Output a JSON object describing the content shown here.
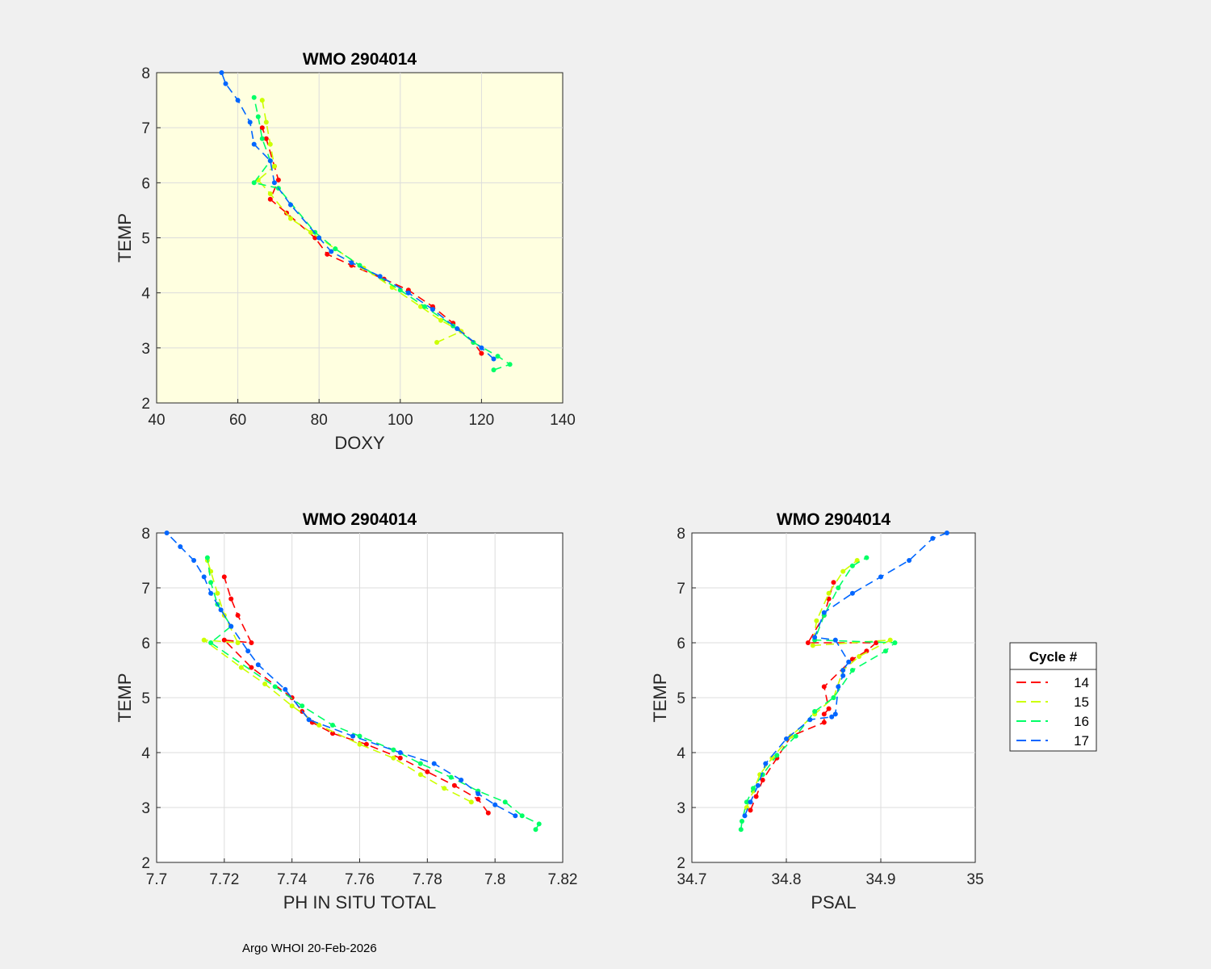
{
  "footer": "Argo WHOI 20-Feb-2026",
  "colors": {
    "figure_bg": "#f0f0f0",
    "highlight_bg": "#ffffe0",
    "plain_bg": "#ffffff"
  },
  "legend": {
    "title": "Cycle #",
    "entries": [
      {
        "label": "14",
        "color": "#ff0000"
      },
      {
        "label": "15",
        "color": "#ccff00"
      },
      {
        "label": "16",
        "color": "#00ff66"
      },
      {
        "label": "17",
        "color": "#0066ff"
      }
    ]
  },
  "chart_data": [
    {
      "type": "line",
      "title": "WMO 2904014",
      "xlabel": "DOXY",
      "ylabel": "TEMP",
      "xlim": [
        40,
        140
      ],
      "ylim": [
        2,
        8
      ],
      "xticks": [
        40,
        60,
        80,
        100,
        120,
        140
      ],
      "yticks": [
        2,
        3,
        4,
        5,
        6,
        7,
        8
      ],
      "xtick_labels": [
        "40",
        "60",
        "80",
        "100",
        "120",
        "140"
      ],
      "ytick_labels": [
        "2",
        "3",
        "4",
        "5",
        "6",
        "7",
        "8"
      ],
      "background": "#ffffe0",
      "series": [
        {
          "name": "14",
          "color": "#ff0000",
          "points": [
            [
              120,
              2.9
            ],
            [
              118,
              3.1
            ],
            [
              113,
              3.45
            ],
            [
              108,
              3.75
            ],
            [
              102,
              4.05
            ],
            [
              96,
              4.25
            ],
            [
              88,
              4.5
            ],
            [
              82,
              4.7
            ],
            [
              79,
              5.0
            ],
            [
              72,
              5.45
            ],
            [
              68,
              5.7
            ],
            [
              70,
              6.05
            ],
            [
              69,
              6.3
            ],
            [
              67,
              6.8
            ],
            [
              66,
              7.0
            ]
          ]
        },
        {
          "name": "15",
          "color": "#ccff00",
          "points": [
            [
              109,
              3.1
            ],
            [
              115,
              3.3
            ],
            [
              110,
              3.5
            ],
            [
              105,
              3.75
            ],
            [
              98,
              4.1
            ],
            [
              91,
              4.45
            ],
            [
              84,
              4.8
            ],
            [
              78,
              5.1
            ],
            [
              73,
              5.35
            ],
            [
              68,
              5.8
            ],
            [
              65,
              6.05
            ],
            [
              69,
              6.3
            ],
            [
              68,
              6.7
            ],
            [
              67,
              7.1
            ],
            [
              66,
              7.5
            ]
          ]
        },
        {
          "name": "16",
          "color": "#00ff66",
          "points": [
            [
              123,
              2.6
            ],
            [
              127,
              2.7
            ],
            [
              124,
              2.85
            ],
            [
              118,
              3.1
            ],
            [
              113,
              3.4
            ],
            [
              106,
              3.75
            ],
            [
              100,
              4.05
            ],
            [
              90,
              4.5
            ],
            [
              84,
              4.8
            ],
            [
              79,
              5.1
            ],
            [
              70,
              5.9
            ],
            [
              64,
              6.0
            ],
            [
              68,
              6.4
            ],
            [
              66,
              6.8
            ],
            [
              65,
              7.2
            ],
            [
              64,
              7.55
            ]
          ]
        },
        {
          "name": "17",
          "color": "#0066ff",
          "points": [
            [
              123,
              2.8
            ],
            [
              120,
              3.0
            ],
            [
              114,
              3.35
            ],
            [
              108,
              3.7
            ],
            [
              102,
              4.0
            ],
            [
              95,
              4.3
            ],
            [
              88,
              4.55
            ],
            [
              83,
              4.75
            ],
            [
              80,
              5.0
            ],
            [
              73,
              5.6
            ],
            [
              69,
              6.0
            ],
            [
              68,
              6.4
            ],
            [
              64,
              6.7
            ],
            [
              63,
              7.1
            ],
            [
              60,
              7.5
            ],
            [
              57,
              7.8
            ],
            [
              56,
              8.0
            ]
          ]
        }
      ]
    },
    {
      "type": "line",
      "title": "WMO 2904014",
      "xlabel": "PH IN SITU TOTAL",
      "ylabel": "TEMP",
      "xlim": [
        7.7,
        7.82
      ],
      "ylim": [
        2,
        8
      ],
      "xticks": [
        7.7,
        7.72,
        7.74,
        7.76,
        7.78,
        7.8,
        7.82
      ],
      "yticks": [
        2,
        3,
        4,
        5,
        6,
        7,
        8
      ],
      "xtick_labels": [
        "7.7",
        "7.72",
        "7.74",
        "7.76",
        "7.78",
        "7.8",
        "7.82"
      ],
      "ytick_labels": [
        "2",
        "3",
        "4",
        "5",
        "6",
        "7",
        "8"
      ],
      "background": "#ffffff",
      "series": [
        {
          "name": "14",
          "color": "#ff0000",
          "points": [
            [
              7.798,
              2.9
            ],
            [
              7.795,
              3.15
            ],
            [
              7.788,
              3.4
            ],
            [
              7.78,
              3.65
            ],
            [
              7.772,
              3.9
            ],
            [
              7.762,
              4.15
            ],
            [
              7.752,
              4.35
            ],
            [
              7.746,
              4.55
            ],
            [
              7.743,
              4.75
            ],
            [
              7.74,
              5.0
            ],
            [
              7.728,
              5.55
            ],
            [
              7.72,
              6.05
            ],
            [
              7.728,
              6.0
            ],
            [
              7.724,
              6.5
            ],
            [
              7.722,
              6.8
            ],
            [
              7.72,
              7.2
            ]
          ]
        },
        {
          "name": "15",
          "color": "#ccff00",
          "points": [
            [
              7.793,
              3.1
            ],
            [
              7.785,
              3.35
            ],
            [
              7.778,
              3.6
            ],
            [
              7.77,
              3.9
            ],
            [
              7.76,
              4.15
            ],
            [
              7.748,
              4.5
            ],
            [
              7.74,
              4.85
            ],
            [
              7.732,
              5.25
            ],
            [
              7.725,
              5.55
            ],
            [
              7.714,
              6.05
            ],
            [
              7.724,
              6.0
            ],
            [
              7.72,
              6.5
            ],
            [
              7.718,
              6.9
            ],
            [
              7.716,
              7.3
            ],
            [
              7.715,
              7.5
            ]
          ]
        },
        {
          "name": "16",
          "color": "#00ff66",
          "points": [
            [
              7.812,
              2.6
            ],
            [
              7.813,
              2.7
            ],
            [
              7.808,
              2.85
            ],
            [
              7.803,
              3.1
            ],
            [
              7.795,
              3.3
            ],
            [
              7.787,
              3.55
            ],
            [
              7.778,
              3.8
            ],
            [
              7.77,
              4.05
            ],
            [
              7.76,
              4.3
            ],
            [
              7.752,
              4.5
            ],
            [
              7.743,
              4.85
            ],
            [
              7.735,
              5.2
            ],
            [
              7.716,
              6.0
            ],
            [
              7.722,
              6.3
            ],
            [
              7.718,
              6.7
            ],
            [
              7.716,
              7.1
            ],
            [
              7.715,
              7.55
            ]
          ]
        },
        {
          "name": "17",
          "color": "#0066ff",
          "points": [
            [
              7.806,
              2.85
            ],
            [
              7.8,
              3.05
            ],
            [
              7.795,
              3.25
            ],
            [
              7.79,
              3.5
            ],
            [
              7.782,
              3.8
            ],
            [
              7.772,
              4.0
            ],
            [
              7.758,
              4.3
            ],
            [
              7.745,
              4.6
            ],
            [
              7.738,
              5.15
            ],
            [
              7.73,
              5.6
            ],
            [
              7.727,
              5.85
            ],
            [
              7.722,
              6.3
            ],
            [
              7.719,
              6.6
            ],
            [
              7.716,
              6.9
            ],
            [
              7.714,
              7.2
            ],
            [
              7.711,
              7.5
            ],
            [
              7.707,
              7.75
            ],
            [
              7.703,
              8.0
            ]
          ]
        }
      ]
    },
    {
      "type": "line",
      "title": "WMO 2904014",
      "xlabel": "PSAL",
      "ylabel": "TEMP",
      "xlim": [
        34.7,
        35.0
      ],
      "ylim": [
        2,
        8
      ],
      "xticks": [
        34.7,
        34.8,
        34.9,
        35.0
      ],
      "yticks": [
        2,
        3,
        4,
        5,
        6,
        7,
        8
      ],
      "xtick_labels": [
        "34.7",
        "34.8",
        "34.9",
        "35"
      ],
      "ytick_labels": [
        "2",
        "3",
        "4",
        "5",
        "6",
        "7",
        "8"
      ],
      "background": "#ffffff",
      "series": [
        {
          "name": "14",
          "color": "#ff0000",
          "points": [
            [
              34.762,
              2.95
            ],
            [
              34.768,
              3.2
            ],
            [
              34.775,
              3.5
            ],
            [
              34.79,
              3.9
            ],
            [
              34.805,
              4.3
            ],
            [
              34.84,
              4.55
            ],
            [
              34.84,
              4.7
            ],
            [
              34.845,
              4.8
            ],
            [
              34.84,
              5.2
            ],
            [
              34.87,
              5.7
            ],
            [
              34.885,
              5.85
            ],
            [
              34.895,
              6.0
            ],
            [
              34.823,
              6.0
            ],
            [
              34.84,
              6.5
            ],
            [
              34.845,
              6.8
            ],
            [
              34.85,
              7.1
            ]
          ]
        },
        {
          "name": "15",
          "color": "#ccff00",
          "points": [
            [
              34.758,
              3.0
            ],
            [
              34.765,
              3.3
            ],
            [
              34.772,
              3.6
            ],
            [
              34.785,
              3.9
            ],
            [
              34.805,
              4.3
            ],
            [
              34.83,
              4.7
            ],
            [
              34.85,
              5.0
            ],
            [
              34.86,
              5.5
            ],
            [
              34.877,
              5.75
            ],
            [
              34.91,
              6.05
            ],
            [
              34.828,
              5.95
            ],
            [
              34.832,
              6.4
            ],
            [
              34.845,
              6.9
            ],
            [
              34.86,
              7.3
            ],
            [
              34.875,
              7.5
            ]
          ]
        },
        {
          "name": "16",
          "color": "#00ff66",
          "points": [
            [
              34.752,
              2.6
            ],
            [
              34.753,
              2.75
            ],
            [
              34.758,
              3.1
            ],
            [
              34.765,
              3.35
            ],
            [
              34.775,
              3.6
            ],
            [
              34.79,
              3.95
            ],
            [
              34.81,
              4.3
            ],
            [
              34.83,
              4.75
            ],
            [
              34.85,
              5.0
            ],
            [
              34.87,
              5.5
            ],
            [
              34.905,
              5.85
            ],
            [
              34.915,
              6.0
            ],
            [
              34.83,
              6.05
            ],
            [
              34.84,
              6.5
            ],
            [
              34.855,
              7.0
            ],
            [
              34.87,
              7.4
            ],
            [
              34.885,
              7.55
            ]
          ]
        },
        {
          "name": "17",
          "color": "#0066ff",
          "points": [
            [
              34.756,
              2.85
            ],
            [
              34.762,
              3.1
            ],
            [
              34.77,
              3.4
            ],
            [
              34.778,
              3.8
            ],
            [
              34.8,
              4.25
            ],
            [
              34.825,
              4.6
            ],
            [
              34.848,
              4.65
            ],
            [
              34.852,
              4.7
            ],
            [
              34.855,
              5.2
            ],
            [
              34.86,
              5.4
            ],
            [
              34.86,
              5.5
            ],
            [
              34.866,
              5.65
            ],
            [
              34.852,
              6.05
            ],
            [
              34.83,
              6.1
            ],
            [
              34.84,
              6.55
            ],
            [
              34.87,
              6.9
            ],
            [
              34.9,
              7.2
            ],
            [
              34.93,
              7.5
            ],
            [
              34.955,
              7.9
            ],
            [
              34.97,
              8.0
            ]
          ]
        }
      ]
    }
  ]
}
